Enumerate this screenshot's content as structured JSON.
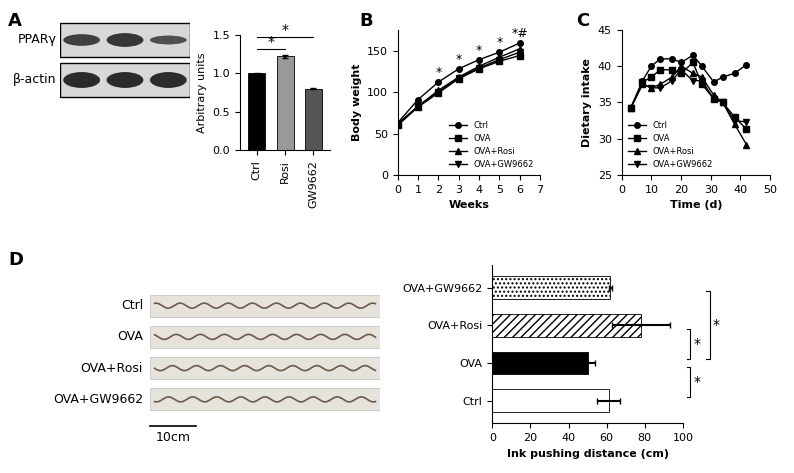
{
  "chart_data": [
    {
      "panel": "A",
      "type": "bar",
      "blot_labels": [
        "PPARγ",
        "β-actin"
      ],
      "categories": [
        "Ctrl",
        "Rosi",
        "GW9662"
      ],
      "values": [
        1.0,
        1.22,
        0.8
      ],
      "errors": [
        0.01,
        0.02,
        0.01
      ],
      "colors": [
        "#000000",
        "#999999",
        "#555555"
      ],
      "y_label": "Arbitrary units",
      "ylim": [
        0,
        1.5
      ],
      "yticks": [
        {
          "value": 0,
          "label": "0.0"
        },
        {
          "value": 0.5,
          "label": "0.5"
        },
        {
          "value": 1.0,
          "label": "1.0"
        },
        {
          "value": 1.5,
          "label": "1.5"
        }
      ],
      "significance": [
        {
          "pair": [
            "Ctrl",
            "Rosi"
          ],
          "label": "*"
        },
        {
          "pair": [
            "Ctrl",
            "GW9662"
          ],
          "label": "*"
        }
      ]
    },
    {
      "panel": "B",
      "type": "line",
      "x_label": "Weeks",
      "y_label": "Body weight",
      "x": [
        0,
        1,
        2,
        3,
        4,
        5,
        6
      ],
      "series": [
        {
          "name": "Ctrl",
          "color": "#000000",
          "marker": "circle",
          "line_style": "solid",
          "values": [
            63,
            91,
            112,
            128,
            139,
            148,
            159
          ]
        },
        {
          "name": "OVA",
          "color": "#000000",
          "marker": "square",
          "line_style": "solid",
          "values": [
            60,
            82,
            99,
            116,
            128,
            137,
            144
          ]
        },
        {
          "name": "OVA+Rosi",
          "color": "#000000",
          "marker": "triangle_up",
          "line_style": "solid",
          "values": [
            62,
            83,
            102,
            118,
            131,
            142,
            152
          ]
        },
        {
          "name": "OVA+GW9662",
          "color": "#000000",
          "marker": "triangle_down",
          "line_style": "solid",
          "values": [
            61,
            83,
            100,
            117,
            129,
            139,
            148
          ]
        }
      ],
      "xlim": [
        0,
        7
      ],
      "xticks": [
        0,
        1,
        2,
        3,
        4,
        5,
        6,
        7
      ],
      "ylim": [
        0,
        175
      ],
      "yticks": [
        0,
        50,
        100,
        150
      ],
      "legend": "lower right",
      "annotations": [
        {
          "x": 2,
          "text": "*"
        },
        {
          "x": 3,
          "text": "*"
        },
        {
          "x": 4,
          "text": "*"
        },
        {
          "x": 5,
          "text": "*"
        },
        {
          "x": 6,
          "text": "*#"
        }
      ]
    },
    {
      "panel": "C",
      "type": "line",
      "x_label": "Time (d)",
      "y_label": "Dietary intake",
      "x": [
        3,
        7,
        10,
        13,
        17,
        20,
        24,
        27,
        31,
        34,
        38,
        42
      ],
      "series": [
        {
          "name": "Ctrl",
          "color": "#000000",
          "marker": "circle",
          "line_style": "solid",
          "values": [
            34.2,
            38.0,
            40.0,
            41.0,
            41.0,
            40.5,
            41.5,
            40.0,
            37.8,
            38.5,
            39.0,
            40.2
          ]
        },
        {
          "name": "OVA",
          "color": "#000000",
          "marker": "square",
          "line_style": "solid",
          "values": [
            34.2,
            37.8,
            38.5,
            39.5,
            39.5,
            39.0,
            40.5,
            37.5,
            35.5,
            35.0,
            33.0,
            31.3
          ]
        },
        {
          "name": "OVA+Rosi",
          "color": "#000000",
          "marker": "triangle_up",
          "line_style": "solid",
          "values": [
            34.2,
            37.5,
            37.0,
            37.5,
            38.5,
            40.0,
            39.0,
            38.5,
            36.0,
            35.0,
            32.0,
            29.2
          ]
        },
        {
          "name": "OVA+GW9662",
          "color": "#000000",
          "marker": "triangle_down",
          "line_style": "solid",
          "values": [
            34.2,
            37.5,
            37.0,
            37.0,
            38.0,
            39.5,
            38.0,
            38.0,
            35.5,
            35.0,
            32.5,
            32.3
          ]
        }
      ],
      "xlim": [
        0,
        50
      ],
      "xticks": [
        0,
        10,
        20,
        30,
        40,
        50
      ],
      "ylim": [
        25,
        45
      ],
      "yticks": [
        25,
        30,
        35,
        40,
        45
      ],
      "legend": "lower left"
    },
    {
      "panel": "D",
      "type": "bar",
      "orientation": "horizontal",
      "image_labels": [
        "Ctrl",
        "OVA",
        "OVA+Rosi",
        "OVA+GW9662"
      ],
      "scale_bar": "10cm",
      "categories": [
        "Ctrl",
        "OVA",
        "OVA+Rosi",
        "OVA+GW9662"
      ],
      "values": [
        61,
        50,
        78,
        62
      ],
      "errors": [
        6,
        4,
        15,
        1
      ],
      "colors": [
        "#ffffff",
        "#000000",
        "#ffffff",
        "#ffffff"
      ],
      "x_label": "Ink pushing distance (cm)",
      "xlim": [
        0,
        100
      ],
      "xticks": [
        0,
        20,
        40,
        60,
        80,
        100
      ],
      "significance": [
        {
          "pair": [
            "Ctrl",
            "OVA"
          ],
          "label": "*"
        },
        {
          "pair": [
            "OVA",
            "OVA+Rosi"
          ],
          "label": "*"
        },
        {
          "pair": [
            "OVA",
            "OVA+GW9662"
          ],
          "label": "*"
        }
      ]
    }
  ]
}
